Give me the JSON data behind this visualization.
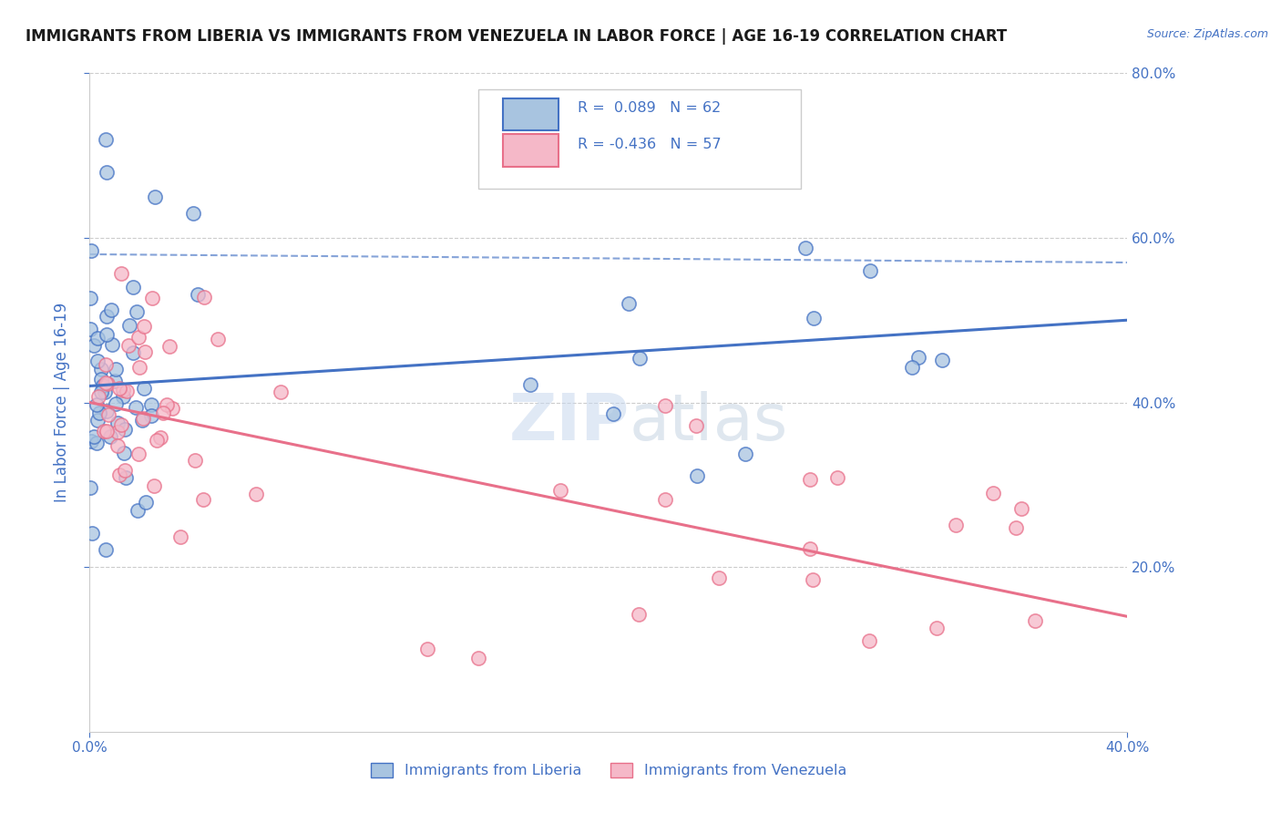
{
  "title": "IMMIGRANTS FROM LIBERIA VS IMMIGRANTS FROM VENEZUELA IN LABOR FORCE | AGE 16-19 CORRELATION CHART",
  "source": "Source: ZipAtlas.com",
  "ylabel": "In Labor Force | Age 16-19",
  "xlim": [
    0.0,
    0.4
  ],
  "ylim": [
    0.0,
    0.8
  ],
  "xticks": [
    0.0,
    0.4
  ],
  "xticklabels": [
    "0.0%",
    "40.0%"
  ],
  "ytick_positions": [
    0.2,
    0.4,
    0.6,
    0.8
  ],
  "yticklabels": [
    "20.0%",
    "40.0%",
    "60.0%",
    "80.0%"
  ],
  "grid_color": "#cccccc",
  "background_color": "#ffffff",
  "liberia_color": "#4472c4",
  "liberia_face": "#a8c4e0",
  "venezuela_color": "#e8708a",
  "venezuela_face": "#f5b8c8",
  "R_liberia": 0.089,
  "N_liberia": 62,
  "R_venezuela": -0.436,
  "N_venezuela": 57,
  "legend_label_1": "Immigrants from Liberia",
  "legend_label_2": "Immigrants from Venezuela",
  "tick_color": "#4472c4",
  "tick_fontsize": 11,
  "axis_label_fontsize": 12,
  "title_fontsize": 12,
  "liberia_trend": [
    0.42,
    0.5
  ],
  "venezuela_trend": [
    0.4,
    0.14
  ],
  "dashed_line": [
    0.58,
    0.57
  ]
}
